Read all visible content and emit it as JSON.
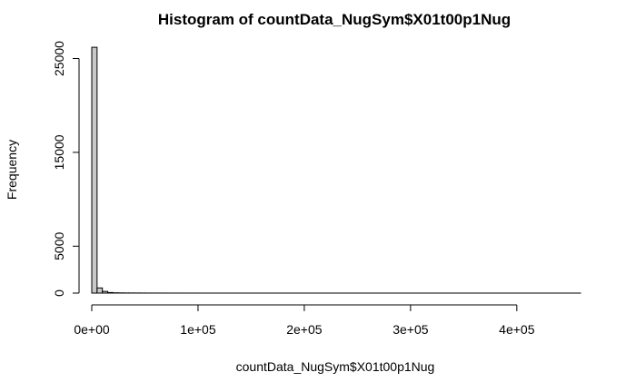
{
  "chart_data": {
    "type": "bar",
    "title": "Histogram of countData_NugSym$X01t00p1Nug",
    "xlabel": "countData_NugSym$X01t00p1Nug",
    "ylabel": "Frequency",
    "xlim": [
      0,
      460000
    ],
    "ylim": [
      0,
      26500
    ],
    "x_ticks": [
      0,
      100000,
      200000,
      300000,
      400000
    ],
    "x_tick_labels": [
      "0e+00",
      "1e+05",
      "2e+05",
      "3e+05",
      "4e+05"
    ],
    "y_ticks": [
      0,
      5000,
      15000,
      25000
    ],
    "y_tick_labels": [
      "0",
      "5000",
      "15000",
      "25000"
    ],
    "bin_width": 5000,
    "bin_start": 0,
    "values": [
      26200,
      550,
      180,
      60,
      30,
      20,
      15,
      12,
      10,
      8,
      6,
      5,
      4,
      4,
      3,
      3,
      2,
      2,
      2,
      2,
      1,
      1,
      1,
      1,
      1,
      1,
      1,
      1,
      1,
      1,
      1,
      1,
      1,
      1,
      1,
      1,
      1,
      1,
      1,
      1,
      1,
      1,
      1,
      1,
      1,
      1,
      1,
      1,
      1,
      1,
      1,
      1,
      1,
      1,
      1,
      1,
      1,
      1,
      1,
      1,
      1,
      1,
      1,
      1,
      1,
      1,
      1,
      1,
      1,
      1,
      1,
      1,
      1,
      1,
      1,
      1,
      1,
      1,
      1,
      1,
      1,
      1,
      1,
      1,
      1,
      1,
      1,
      1,
      1,
      1,
      1,
      1
    ],
    "grid": false,
    "legend": "none"
  }
}
